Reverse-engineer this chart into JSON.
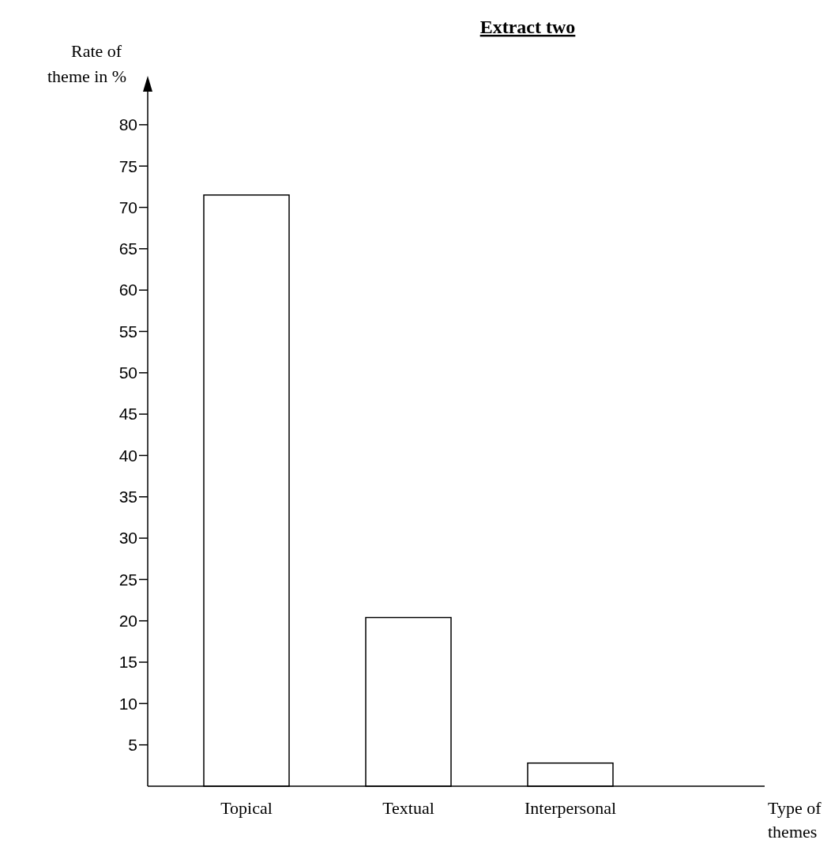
{
  "chart_data": {
    "type": "bar",
    "title": "Extract two",
    "xlabel": "Type of themes",
    "ylabel": "Rate of theme in %",
    "categories": [
      "Topical",
      "Textual",
      "Interpersonal"
    ],
    "values": [
      71.5,
      20.4,
      2.8
    ],
    "color": "#ffffff",
    "ylim": [
      0,
      84
    ],
    "yticks": [
      5,
      10,
      15,
      20,
      25,
      30,
      35,
      40,
      45,
      50,
      55,
      60,
      65,
      70,
      75,
      80
    ],
    "grid": false
  }
}
